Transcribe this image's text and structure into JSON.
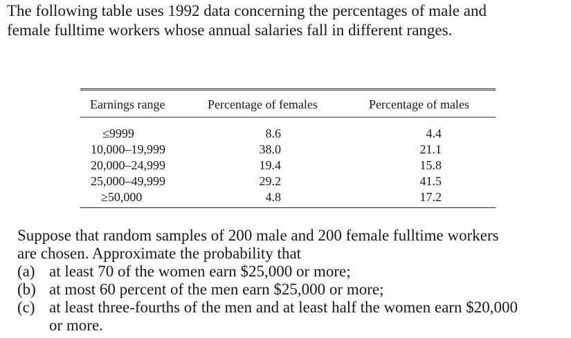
{
  "intro": {
    "line1": "The following table uses 1992 data concerning the percentages of male and",
    "line2": "female fulltime workers whose annual salaries fall in different ranges."
  },
  "table": {
    "headers": {
      "range": "Earnings range",
      "females": "Percentage of females",
      "males": "Percentage of males"
    },
    "rows": [
      {
        "range": "≤9999",
        "females": "8.6",
        "males": "4.4"
      },
      {
        "range": "10,000–19,999",
        "females": "38.0",
        "males": "21.1"
      },
      {
        "range": "20,000–24,999",
        "females": "19.4",
        "males": "15.8"
      },
      {
        "range": "25,000–49,999",
        "females": "29.2",
        "males": "41.5"
      },
      {
        "range": "≥50,000",
        "females": "4.8",
        "males": "17.2"
      }
    ]
  },
  "question": {
    "line1": "Suppose that random samples of 200 male and 200 female fulltime workers",
    "line2": "are chosen. Approximate the probability that",
    "items": [
      {
        "marker": "(a)",
        "text": "at least 70 of the women earn $25,000 or more;"
      },
      {
        "marker": "(b)",
        "text": "at most 60 percent of the men earn $25,000 or more;"
      },
      {
        "marker": "(c)",
        "text": "at least three-fourths of the men and at least half the women earn $20,000",
        "text2": "or more."
      }
    ]
  }
}
